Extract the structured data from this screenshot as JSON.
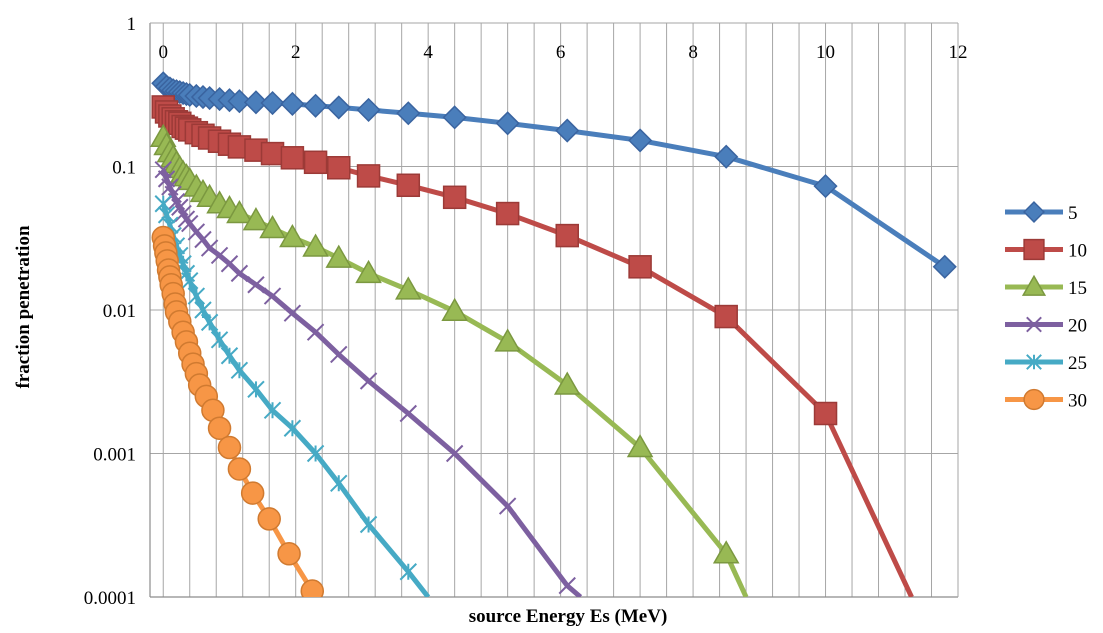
{
  "chart_data": {
    "type": "line",
    "title": "",
    "xlabel": "source Energy Es (MeV)",
    "ylabel": "fraction penetration",
    "x_scale": "linear",
    "y_scale": "log",
    "xlim": [
      -0.2,
      12
    ],
    "ylim": [
      0.0001,
      1
    ],
    "x_ticks": [
      "0",
      "2",
      "4",
      "6",
      "8",
      "10",
      "12"
    ],
    "x_tick_values": [
      0,
      2,
      4,
      6,
      8,
      10,
      12
    ],
    "y_ticks": [
      "0.0001",
      "0.001",
      "0.01",
      "0.1",
      "1"
    ],
    "y_tick_values": [
      0.0001,
      0.001,
      0.01,
      0.1,
      1
    ],
    "grid": {
      "vertical_minor": true,
      "horizontal_major": true
    },
    "legend_position": "right",
    "series": [
      {
        "name": "5",
        "color": "#4A7EBB",
        "marker": "diamond",
        "points": [
          [
            0,
            0.38
          ],
          [
            0.05,
            0.36
          ],
          [
            0.1,
            0.35
          ],
          [
            0.15,
            0.34
          ],
          [
            0.2,
            0.335
          ],
          [
            0.25,
            0.33
          ],
          [
            0.3,
            0.325
          ],
          [
            0.35,
            0.32
          ],
          [
            0.4,
            0.315
          ],
          [
            0.5,
            0.31
          ],
          [
            0.6,
            0.305
          ],
          [
            0.7,
            0.3
          ],
          [
            0.85,
            0.295
          ],
          [
            1.0,
            0.29
          ],
          [
            1.15,
            0.285
          ],
          [
            1.4,
            0.28
          ],
          [
            1.65,
            0.277
          ],
          [
            1.95,
            0.273
          ],
          [
            2.3,
            0.265
          ],
          [
            2.65,
            0.258
          ],
          [
            3.1,
            0.248
          ],
          [
            3.7,
            0.235
          ],
          [
            4.4,
            0.22
          ],
          [
            5.2,
            0.2
          ],
          [
            6.1,
            0.178
          ],
          [
            7.2,
            0.152
          ],
          [
            8.5,
            0.117
          ],
          [
            10.0,
            0.073
          ],
          [
            11.8,
            0.02
          ]
        ]
      },
      {
        "name": "10",
        "color": "#BE4B48",
        "marker": "square",
        "points": [
          [
            0,
            0.26
          ],
          [
            0.05,
            0.24
          ],
          [
            0.1,
            0.225
          ],
          [
            0.15,
            0.215
          ],
          [
            0.2,
            0.205
          ],
          [
            0.25,
            0.2
          ],
          [
            0.3,
            0.19
          ],
          [
            0.35,
            0.185
          ],
          [
            0.4,
            0.18
          ],
          [
            0.5,
            0.172
          ],
          [
            0.6,
            0.165
          ],
          [
            0.7,
            0.158
          ],
          [
            0.85,
            0.15
          ],
          [
            1.0,
            0.143
          ],
          [
            1.15,
            0.137
          ],
          [
            1.4,
            0.13
          ],
          [
            1.65,
            0.123
          ],
          [
            1.95,
            0.115
          ],
          [
            2.3,
            0.107
          ],
          [
            2.65,
            0.098
          ],
          [
            3.1,
            0.086
          ],
          [
            3.7,
            0.074
          ],
          [
            4.4,
            0.061
          ],
          [
            5.2,
            0.047
          ],
          [
            6.1,
            0.033
          ],
          [
            7.2,
            0.02
          ],
          [
            8.5,
            0.009
          ],
          [
            10.0,
            0.0019
          ],
          [
            11.3,
            0.0001
          ]
        ]
      },
      {
        "name": "15",
        "color": "#98B954",
        "marker": "triangle",
        "points": [
          [
            0,
            0.16
          ],
          [
            0.05,
            0.14
          ],
          [
            0.1,
            0.125
          ],
          [
            0.15,
            0.115
          ],
          [
            0.2,
            0.105
          ],
          [
            0.25,
            0.097
          ],
          [
            0.3,
            0.09
          ],
          [
            0.35,
            0.085
          ],
          [
            0.4,
            0.08
          ],
          [
            0.5,
            0.072
          ],
          [
            0.6,
            0.066
          ],
          [
            0.7,
            0.061
          ],
          [
            0.85,
            0.055
          ],
          [
            1.0,
            0.051
          ],
          [
            1.15,
            0.047
          ],
          [
            1.4,
            0.042
          ],
          [
            1.65,
            0.037
          ],
          [
            1.95,
            0.032
          ],
          [
            2.3,
            0.0275
          ],
          [
            2.65,
            0.023
          ],
          [
            3.1,
            0.018
          ],
          [
            3.7,
            0.0138
          ],
          [
            4.4,
            0.0098
          ],
          [
            5.2,
            0.006
          ],
          [
            6.1,
            0.003
          ],
          [
            7.2,
            0.0011
          ],
          [
            8.5,
            0.0002
          ],
          [
            8.8,
            0.0001
          ]
        ]
      },
      {
        "name": "20",
        "color": "#7D60A0",
        "marker": "x",
        "points": [
          [
            0,
            0.095
          ],
          [
            0.05,
            0.082
          ],
          [
            0.1,
            0.072
          ],
          [
            0.15,
            0.064
          ],
          [
            0.2,
            0.057
          ],
          [
            0.25,
            0.052
          ],
          [
            0.3,
            0.047
          ],
          [
            0.35,
            0.043
          ],
          [
            0.4,
            0.04
          ],
          [
            0.5,
            0.035
          ],
          [
            0.6,
            0.031
          ],
          [
            0.7,
            0.027
          ],
          [
            0.85,
            0.024
          ],
          [
            1.0,
            0.021
          ],
          [
            1.15,
            0.018
          ],
          [
            1.4,
            0.015
          ],
          [
            1.65,
            0.0125
          ],
          [
            1.95,
            0.0095
          ],
          [
            2.3,
            0.007
          ],
          [
            2.65,
            0.0049
          ],
          [
            3.1,
            0.0032
          ],
          [
            3.7,
            0.0019
          ],
          [
            4.4,
            0.001
          ],
          [
            5.2,
            0.00043
          ],
          [
            6.1,
            0.00012
          ],
          [
            6.3,
            0.0001
          ]
        ]
      },
      {
        "name": "25",
        "color": "#46AAC5",
        "marker": "asterisk",
        "points": [
          [
            0,
            0.055
          ],
          [
            0.05,
            0.046
          ],
          [
            0.1,
            0.039
          ],
          [
            0.15,
            0.033
          ],
          [
            0.2,
            0.028
          ],
          [
            0.25,
            0.024
          ],
          [
            0.3,
            0.021
          ],
          [
            0.35,
            0.018
          ],
          [
            0.4,
            0.016
          ],
          [
            0.5,
            0.0125
          ],
          [
            0.6,
            0.01
          ],
          [
            0.7,
            0.0082
          ],
          [
            0.85,
            0.0062
          ],
          [
            1.0,
            0.0048
          ],
          [
            1.15,
            0.0038
          ],
          [
            1.4,
            0.0028
          ],
          [
            1.65,
            0.002
          ],
          [
            1.95,
            0.0015
          ],
          [
            2.3,
            0.001
          ],
          [
            2.65,
            0.00062
          ],
          [
            3.1,
            0.00032
          ],
          [
            3.7,
            0.00015
          ],
          [
            4.0,
            0.0001
          ]
        ]
      },
      {
        "name": "30",
        "color": "#F79646",
        "marker": "circle",
        "points": [
          [
            0,
            0.032
          ],
          [
            0.02,
            0.028
          ],
          [
            0.04,
            0.025
          ],
          [
            0.06,
            0.022
          ],
          [
            0.08,
            0.019
          ],
          [
            0.1,
            0.017
          ],
          [
            0.12,
            0.015
          ],
          [
            0.15,
            0.013
          ],
          [
            0.18,
            0.011
          ],
          [
            0.2,
            0.0097
          ],
          [
            0.25,
            0.0083
          ],
          [
            0.3,
            0.007
          ],
          [
            0.35,
            0.006
          ],
          [
            0.4,
            0.005
          ],
          [
            0.45,
            0.0042
          ],
          [
            0.5,
            0.0036
          ],
          [
            0.55,
            0.003
          ],
          [
            0.65,
            0.0025
          ],
          [
            0.75,
            0.002
          ],
          [
            0.85,
            0.0015
          ],
          [
            1.0,
            0.0011
          ],
          [
            1.15,
            0.00078
          ],
          [
            1.35,
            0.00053
          ],
          [
            1.6,
            0.00035
          ],
          [
            1.9,
            0.0002
          ],
          [
            2.25,
            0.00011
          ]
        ]
      }
    ]
  }
}
